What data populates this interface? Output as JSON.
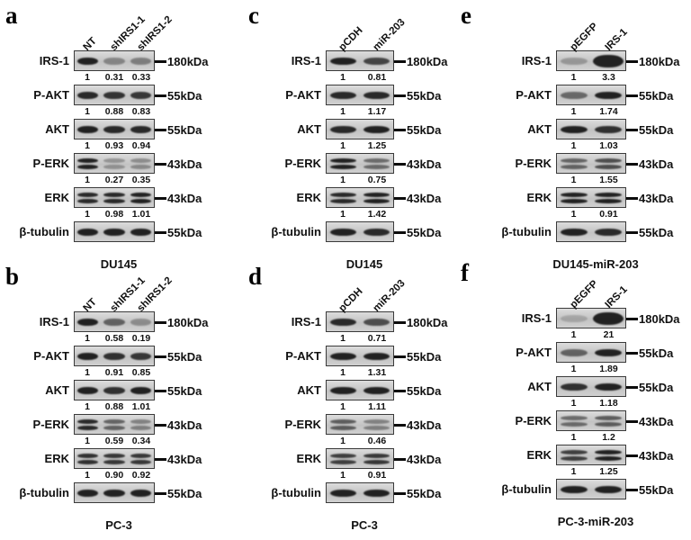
{
  "figure": {
    "name": "western-blot-figure",
    "panels": [
      {
        "letter": "a",
        "lanes": [
          "NT",
          "shIRS1-1",
          "shIRS1-2"
        ],
        "cell_line": "DU145",
        "rows": [
          {
            "protein": "IRS-1",
            "marker": "180kDa",
            "values": [
              "1",
              "0.31",
              "0.33"
            ],
            "double": false,
            "intensities": [
              1,
              0.3,
              0.35
            ]
          },
          {
            "protein": "P-AKT",
            "marker": "55kDa",
            "values": [
              "1",
              "0.88",
              "0.83"
            ],
            "double": false,
            "intensities": [
              0.95,
              0.88,
              0.85
            ]
          },
          {
            "protein": "AKT",
            "marker": "55kDa",
            "values": [
              "1",
              "0.93",
              "0.94"
            ],
            "double": false,
            "intensities": [
              1,
              0.95,
              0.95
            ]
          },
          {
            "protein": "P-ERK",
            "marker": "43kDa",
            "values": [
              "1",
              "0.27",
              "0.35"
            ],
            "double": true,
            "intensities": [
              1,
              0.22,
              0.28
            ]
          },
          {
            "protein": "ERK",
            "marker": "43kDa",
            "values": [
              "1",
              "0.98",
              "1.01"
            ],
            "double": true,
            "intensities": [
              0.95,
              0.95,
              1
            ]
          },
          {
            "protein": "β-tubulin",
            "marker": "55kDa",
            "values": [],
            "double": false,
            "intensities": [
              1,
              1,
              1
            ]
          }
        ]
      },
      {
        "letter": "b",
        "lanes": [
          "NT",
          "shIRS1-1",
          "shIRS1-2"
        ],
        "cell_line": "PC-3",
        "rows": [
          {
            "protein": "IRS-1",
            "marker": "180kDa",
            "values": [
              "1",
              "0.58",
              "0.19"
            ],
            "double": false,
            "intensities": [
              1,
              0.55,
              0.25
            ]
          },
          {
            "protein": "P-AKT",
            "marker": "55kDa",
            "values": [
              "1",
              "0.91",
              "0.85"
            ],
            "double": false,
            "intensities": [
              1,
              0.9,
              0.85
            ]
          },
          {
            "protein": "AKT",
            "marker": "55kDa",
            "values": [
              "1",
              "0.88",
              "1.01"
            ],
            "double": false,
            "intensities": [
              1,
              0.9,
              1
            ]
          },
          {
            "protein": "P-ERK",
            "marker": "43kDa",
            "values": [
              "1",
              "0.59",
              "0.34"
            ],
            "double": true,
            "intensities": [
              0.95,
              0.55,
              0.35
            ]
          },
          {
            "protein": "ERK",
            "marker": "43kDa",
            "values": [
              "1",
              "0.90",
              "0.92"
            ],
            "double": true,
            "intensities": [
              0.9,
              0.85,
              0.85
            ]
          },
          {
            "protein": "β-tubulin",
            "marker": "55kDa",
            "values": [],
            "double": false,
            "intensities": [
              1,
              1,
              1
            ]
          }
        ]
      },
      {
        "letter": "c",
        "lanes": [
          "pCDH",
          "miR-203"
        ],
        "cell_line": "DU145",
        "rows": [
          {
            "protein": "IRS-1",
            "marker": "180kDa",
            "values": [
              "1",
              "0.81"
            ],
            "double": false,
            "intensities": [
              1,
              0.75
            ]
          },
          {
            "protein": "P-AKT",
            "marker": "55kDa",
            "values": [
              "1",
              "1.17"
            ],
            "double": false,
            "intensities": [
              0.95,
              0.95
            ]
          },
          {
            "protein": "AKT",
            "marker": "55kDa",
            "values": [
              "1",
              "1.25"
            ],
            "double": false,
            "intensities": [
              0.95,
              1
            ]
          },
          {
            "protein": "P-ERK",
            "marker": "43kDa",
            "values": [
              "1",
              "0.75"
            ],
            "double": true,
            "intensities": [
              1,
              0.5
            ]
          },
          {
            "protein": "ERK",
            "marker": "43kDa",
            "values": [
              "1",
              "1.42"
            ],
            "double": true,
            "intensities": [
              0.95,
              1
            ]
          },
          {
            "protein": "β-tubulin",
            "marker": "55kDa",
            "values": [],
            "double": false,
            "intensities": [
              1,
              0.95
            ]
          }
        ]
      },
      {
        "letter": "d",
        "lanes": [
          "pCDH",
          "miR-203"
        ],
        "cell_line": "PC-3",
        "rows": [
          {
            "protein": "IRS-1",
            "marker": "180kDa",
            "values": [
              "1",
              "0.71"
            ],
            "double": false,
            "intensities": [
              0.95,
              0.7
            ]
          },
          {
            "protein": "P-AKT",
            "marker": "55kDa",
            "values": [
              "1",
              "1.31"
            ],
            "double": false,
            "intensities": [
              1,
              1
            ]
          },
          {
            "protein": "AKT",
            "marker": "55kDa",
            "values": [
              "1",
              "1.11"
            ],
            "double": false,
            "intensities": [
              1,
              1
            ]
          },
          {
            "protein": "P-ERK",
            "marker": "43kDa",
            "values": [
              "1",
              "0.46"
            ],
            "double": true,
            "intensities": [
              0.6,
              0.35
            ]
          },
          {
            "protein": "ERK",
            "marker": "43kDa",
            "values": [
              "1",
              "0.91"
            ],
            "double": true,
            "intensities": [
              0.8,
              0.85
            ]
          },
          {
            "protein": "β-tubulin",
            "marker": "55kDa",
            "values": [],
            "double": false,
            "intensities": [
              1,
              1
            ]
          }
        ]
      },
      {
        "letter": "e",
        "lanes": [
          "pEGFP",
          "IRS-1"
        ],
        "cell_line": "DU145-miR-203",
        "rows": [
          {
            "protein": "IRS-1",
            "marker": "180kDa",
            "values": [
              "1",
              "3.3"
            ],
            "double": false,
            "intensities": [
              0.18,
              1.6
            ]
          },
          {
            "protein": "P-AKT",
            "marker": "55kDa",
            "values": [
              "1",
              "1.74"
            ],
            "double": false,
            "intensities": [
              0.5,
              1
            ]
          },
          {
            "protein": "AKT",
            "marker": "55kDa",
            "values": [
              "1",
              "1.03"
            ],
            "double": false,
            "intensities": [
              1,
              0.9
            ]
          },
          {
            "protein": "P-ERK",
            "marker": "43kDa",
            "values": [
              "1",
              "1.55"
            ],
            "double": true,
            "intensities": [
              0.55,
              0.7
            ]
          },
          {
            "protein": "ERK",
            "marker": "43kDa",
            "values": [
              "1",
              "0.91"
            ],
            "double": true,
            "intensities": [
              1,
              1
            ]
          },
          {
            "protein": "β-tubulin",
            "marker": "55kDa",
            "values": [],
            "double": false,
            "intensities": [
              1,
              0.95
            ]
          }
        ]
      },
      {
        "letter": "f",
        "lanes": [
          "pEGFP",
          "IRS-1"
        ],
        "cell_line": "PC-3-miR-203",
        "rows": [
          {
            "protein": "IRS-1",
            "marker": "180kDa",
            "values": [
              "1",
              "21"
            ],
            "double": false,
            "intensities": [
              0.08,
              1.8
            ]
          },
          {
            "protein": "P-AKT",
            "marker": "55kDa",
            "values": [
              "1",
              "1.89"
            ],
            "double": false,
            "intensities": [
              0.55,
              1
            ]
          },
          {
            "protein": "AKT",
            "marker": "55kDa",
            "values": [
              "1",
              "1.18"
            ],
            "double": false,
            "intensities": [
              0.9,
              1
            ]
          },
          {
            "protein": "P-ERK",
            "marker": "43kDa",
            "values": [
              "1",
              "1.2"
            ],
            "double": true,
            "intensities": [
              0.5,
              0.6
            ]
          },
          {
            "protein": "ERK",
            "marker": "43kDa",
            "values": [
              "1",
              "1.25"
            ],
            "double": true,
            "intensities": [
              0.8,
              1
            ]
          },
          {
            "protein": "β-tubulin",
            "marker": "55kDa",
            "values": [],
            "double": false,
            "intensities": [
              1,
              1
            ]
          }
        ]
      }
    ]
  }
}
